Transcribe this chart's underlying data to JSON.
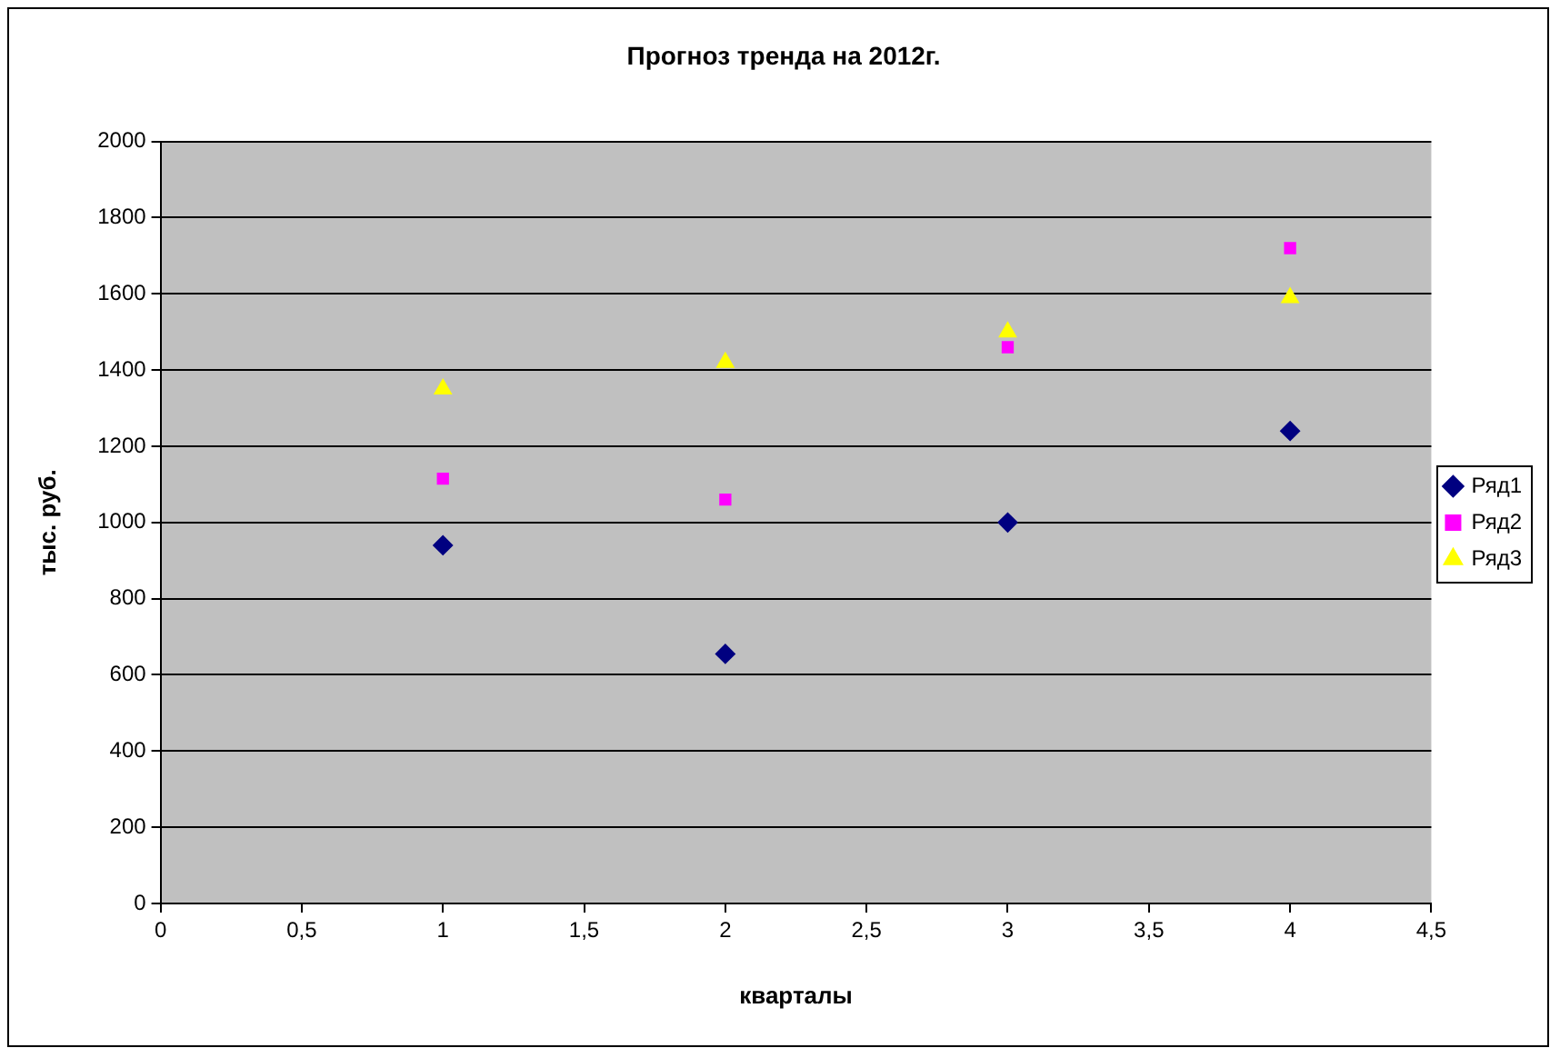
{
  "chart_data": {
    "type": "scatter",
    "title": "Прогноз тренда на 2012г.",
    "xlabel": "кварталы",
    "ylabel": "тыс. руб.",
    "x": [
      1,
      2,
      3,
      4
    ],
    "series": [
      {
        "name": "Ряд1",
        "color": "#000080",
        "marker": "diamond",
        "values": [
          940,
          655,
          1000,
          1240
        ]
      },
      {
        "name": "Ряд2",
        "color": "#ff00ff",
        "marker": "square",
        "values": [
          1115,
          1060,
          1460,
          1720
        ]
      },
      {
        "name": "Ряд3",
        "color": "#ffff00",
        "marker": "triangle",
        "values": [
          1350,
          1420,
          1500,
          1590
        ]
      }
    ],
    "xlim": [
      0,
      4.5
    ],
    "xticks": [
      0,
      {
        "value": 0.5,
        "label": "0,5"
      },
      1,
      {
        "value": 1.5,
        "label": "1,5"
      },
      2,
      {
        "value": 2.5,
        "label": "2,5"
      },
      3,
      {
        "value": 3.5,
        "label": "3,5"
      },
      4,
      {
        "value": 4.5,
        "label": "4,5"
      }
    ],
    "ylim": [
      0,
      2000
    ],
    "yticks": [
      0,
      200,
      400,
      600,
      800,
      1000,
      1200,
      1400,
      1600,
      1800,
      2000
    ],
    "grid": "y",
    "legend": "right"
  }
}
